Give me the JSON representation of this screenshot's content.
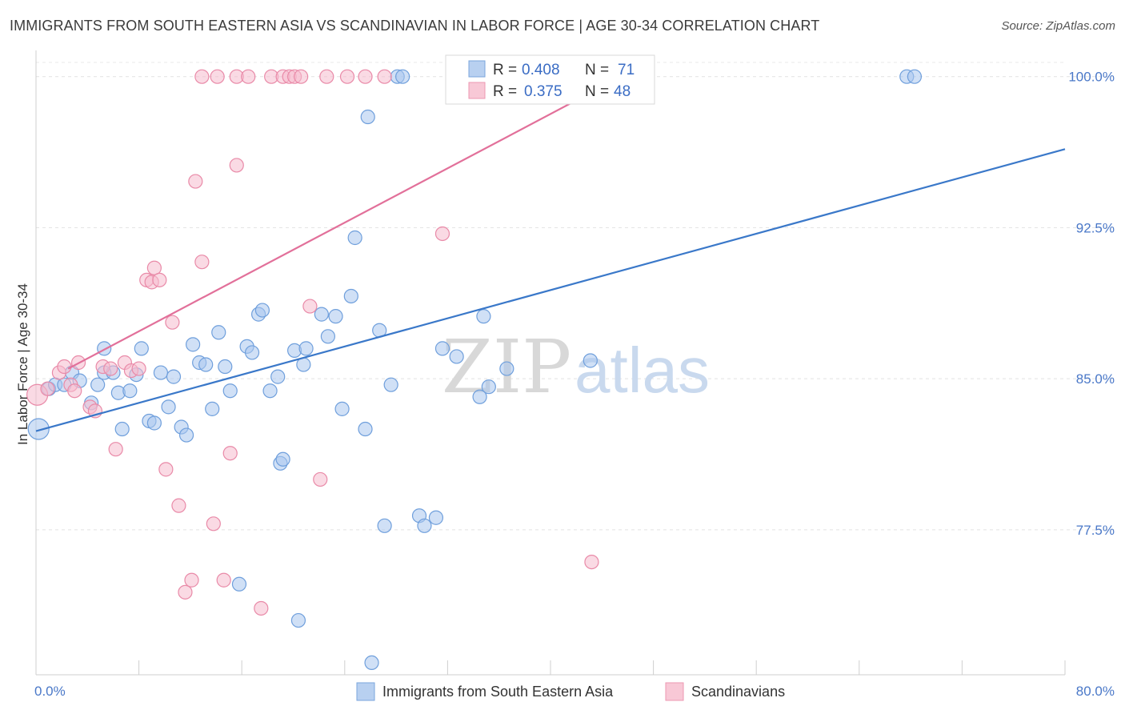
{
  "header": {
    "title": "IMMIGRANTS FROM SOUTH EASTERN ASIA VS SCANDINAVIAN IN LABOR FORCE | AGE 30-34 CORRELATION CHART",
    "source": "Source: ZipAtlas.com"
  },
  "watermark": {
    "zip": "ZIP",
    "atlas": "atlas"
  },
  "legend": {
    "rows": [
      {
        "r_label": "R =",
        "r_value": "0.408",
        "n_label": "N =",
        "n_value": "71"
      },
      {
        "r_label": "R =",
        "r_value": "0.375",
        "n_label": "N =",
        "n_value": "48"
      }
    ]
  },
  "colors": {
    "blue_fill": "#a9c6ee",
    "blue_stroke": "#6f9fdc",
    "blue_line": "#3a78c9",
    "pink_fill": "#f6bccd",
    "pink_stroke": "#e98aa8",
    "pink_line": "#e2709a",
    "grid": "#e2e2e2",
    "tick_text": "#4a78c8"
  },
  "chart_data": {
    "type": "scatter",
    "title": "IMMIGRANTS FROM SOUTH EASTERN ASIA VS SCANDINAVIAN IN LABOR FORCE | AGE 30-34 CORRELATION CHART",
    "xlabel": "",
    "ylabel": "In Labor Force | Age 30-34",
    "xlim": [
      0,
      80
    ],
    "ylim": [
      70.3,
      101.3
    ],
    "x_tick_labels": [
      "0.0%",
      "80.0%"
    ],
    "y_ticks": [
      77.5,
      85.0,
      92.5,
      100.0
    ],
    "y_tick_labels": [
      "77.5%",
      "85.0%",
      "92.5%",
      "100.0%"
    ],
    "grid": true,
    "legend_position": "top-center",
    "series": [
      {
        "name": "Immigrants from South Eastern Asia",
        "color": "#a9c6ee",
        "r": 0.408,
        "n": 71,
        "trend": {
          "x": [
            0,
            80
          ],
          "y": [
            82.4,
            96.4
          ]
        },
        "points": [
          [
            0.2,
            82.5
          ],
          [
            1.0,
            84.5
          ],
          [
            1.5,
            84.7
          ],
          [
            2.2,
            84.7
          ],
          [
            2.8,
            85.3
          ],
          [
            3.4,
            84.9
          ],
          [
            4.3,
            83.8
          ],
          [
            4.8,
            84.7
          ],
          [
            5.3,
            85.3
          ],
          [
            5.3,
            86.5
          ],
          [
            6.0,
            85.3
          ],
          [
            6.4,
            84.3
          ],
          [
            6.7,
            82.5
          ],
          [
            7.3,
            84.4
          ],
          [
            7.8,
            85.2
          ],
          [
            8.2,
            86.5
          ],
          [
            8.8,
            82.9
          ],
          [
            9.2,
            82.8
          ],
          [
            9.7,
            85.3
          ],
          [
            10.3,
            83.6
          ],
          [
            10.7,
            85.1
          ],
          [
            11.3,
            82.6
          ],
          [
            11.7,
            82.2
          ],
          [
            12.2,
            86.7
          ],
          [
            12.7,
            85.8
          ],
          [
            13.2,
            85.7
          ],
          [
            13.7,
            83.5
          ],
          [
            14.2,
            87.3
          ],
          [
            14.7,
            85.6
          ],
          [
            15.1,
            84.4
          ],
          [
            16.4,
            86.6
          ],
          [
            16.8,
            86.3
          ],
          [
            17.3,
            88.2
          ],
          [
            17.6,
            88.4
          ],
          [
            18.2,
            84.4
          ],
          [
            19.0,
            80.8
          ],
          [
            19.2,
            81.0
          ],
          [
            20.1,
            86.4
          ],
          [
            20.8,
            85.7
          ],
          [
            21.0,
            86.5
          ],
          [
            22.2,
            88.2
          ],
          [
            22.7,
            87.1
          ],
          [
            23.3,
            88.1
          ],
          [
            23.8,
            83.5
          ],
          [
            24.5,
            89.1
          ],
          [
            24.8,
            92.0
          ],
          [
            25.6,
            82.5
          ],
          [
            25.8,
            98.0
          ],
          [
            26.7,
            87.4
          ],
          [
            27.6,
            84.7
          ],
          [
            28.1,
            100.0
          ],
          [
            28.5,
            100.0
          ],
          [
            29.8,
            78.2
          ],
          [
            30.2,
            77.7
          ],
          [
            31.1,
            78.1
          ],
          [
            31.6,
            86.5
          ],
          [
            32.5,
            100.0
          ],
          [
            32.7,
            86.1
          ],
          [
            34.5,
            84.1
          ],
          [
            34.8,
            88.1
          ],
          [
            35.2,
            84.6
          ],
          [
            36.6,
            85.5
          ],
          [
            43.1,
            85.9
          ],
          [
            67.7,
            100.0
          ],
          [
            68.3,
            100.0
          ],
          [
            15.8,
            74.8
          ],
          [
            20.4,
            73.0
          ],
          [
            26.1,
            70.9
          ],
          [
            27.1,
            77.7
          ],
          [
            37.8,
            100.0
          ],
          [
            18.8,
            85.1
          ]
        ]
      },
      {
        "name": "Scandinavians",
        "color": "#f6bccd",
        "r": 0.375,
        "n": 48,
        "trend": {
          "x": [
            2.5,
            45.5
          ],
          "y": [
            85.5,
            100.0
          ]
        },
        "points": [
          [
            0.1,
            84.2
          ],
          [
            0.9,
            84.5
          ],
          [
            1.8,
            85.3
          ],
          [
            2.2,
            85.6
          ],
          [
            2.7,
            84.7
          ],
          [
            3.0,
            84.4
          ],
          [
            3.3,
            85.8
          ],
          [
            4.2,
            83.6
          ],
          [
            4.6,
            83.4
          ],
          [
            5.2,
            85.6
          ],
          [
            5.8,
            85.5
          ],
          [
            6.2,
            81.5
          ],
          [
            6.9,
            85.8
          ],
          [
            7.4,
            85.4
          ],
          [
            8.0,
            85.5
          ],
          [
            8.6,
            89.9
          ],
          [
            9.0,
            89.8
          ],
          [
            9.2,
            90.5
          ],
          [
            9.6,
            89.9
          ],
          [
            10.1,
            80.5
          ],
          [
            10.6,
            87.8
          ],
          [
            11.1,
            78.7
          ],
          [
            11.6,
            74.4
          ],
          [
            12.1,
            75.0
          ],
          [
            12.4,
            94.8
          ],
          [
            12.9,
            90.8
          ],
          [
            12.9,
            100.0
          ],
          [
            13.8,
            77.8
          ],
          [
            14.1,
            100.0
          ],
          [
            14.6,
            75.0
          ],
          [
            15.1,
            81.3
          ],
          [
            15.6,
            95.6
          ],
          [
            15.6,
            100.0
          ],
          [
            16.5,
            100.0
          ],
          [
            17.5,
            73.6
          ],
          [
            18.3,
            100.0
          ],
          [
            19.2,
            100.0
          ],
          [
            19.7,
            100.0
          ],
          [
            20.1,
            100.0
          ],
          [
            20.6,
            100.0
          ],
          [
            21.3,
            88.6
          ],
          [
            22.1,
            80.0
          ],
          [
            22.6,
            100.0
          ],
          [
            24.2,
            100.0
          ],
          [
            25.6,
            100.0
          ],
          [
            27.1,
            100.0
          ],
          [
            31.6,
            92.2
          ],
          [
            43.2,
            75.9
          ]
        ]
      }
    ]
  },
  "bottom_legend": {
    "items": [
      {
        "label": "Immigrants from South Eastern Asia"
      },
      {
        "label": "Scandinavians"
      }
    ]
  }
}
